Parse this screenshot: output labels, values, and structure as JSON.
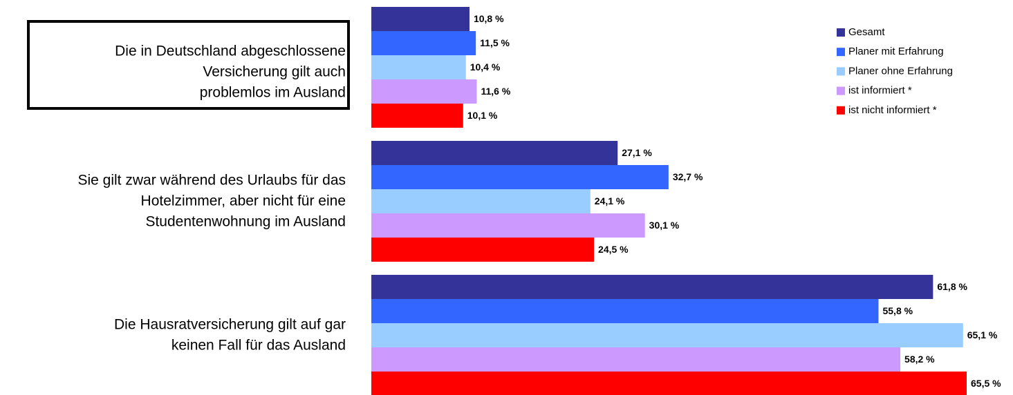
{
  "chart_data": {
    "type": "bar",
    "orientation": "horizontal",
    "categories": [
      "Die in Deutschland abgeschlossene\nVersicherung gilt auch\nproblemlos im Ausland",
      "Sie gilt zwar während des Urlaubs für das\nHotelzimmer, aber nicht für eine\nStudentenwohnung im Ausland",
      "Die Hausratversicherung gilt auf gar\nkeinen Fall für das Ausland"
    ],
    "series": [
      {
        "name": "Gesamt",
        "color": "#333399",
        "values": [
          10.8,
          27.1,
          61.8
        ],
        "value_labels": [
          "10,8 %",
          "27,1 %",
          "61,8 %"
        ]
      },
      {
        "name": "Planer mit Erfahrung",
        "color": "#3366ff",
        "values": [
          11.5,
          32.7,
          55.8
        ],
        "value_labels": [
          "11,5 %",
          "32,7 %",
          "55,8 %"
        ]
      },
      {
        "name": "Planer ohne Erfahrung",
        "color": "#99ccff",
        "values": [
          10.4,
          24.1,
          65.1
        ],
        "value_labels": [
          "10,4 %",
          "24,1 %",
          "65,1 %"
        ]
      },
      {
        "name": "ist informiert *",
        "color": "#cc99ff",
        "values": [
          11.6,
          30.1,
          58.2
        ],
        "value_labels": [
          "11,6 %",
          "30,1 %",
          "58,2 %"
        ]
      },
      {
        "name": "ist nicht informiert *",
        "color": "#ff0000",
        "values": [
          10.1,
          24.5,
          65.5
        ],
        "value_labels": [
          "10,1 %",
          "24,5 %",
          "65,5 %"
        ]
      }
    ],
    "legend": "top-right"
  }
}
